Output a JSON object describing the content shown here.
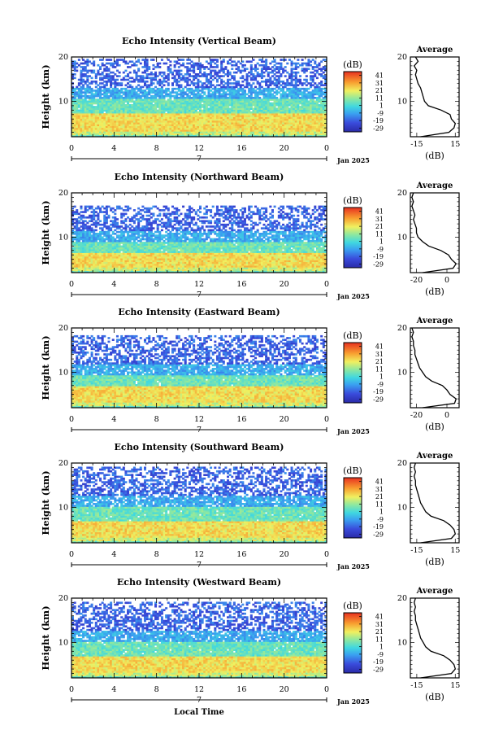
{
  "figure": {
    "date_label": "Jan 2025",
    "day_label": "7",
    "x_axis_title": "Local Time",
    "y_axis_title": "Height (km)",
    "colorbar_unit": "(dB)",
    "colorbar_ticks": [
      "41",
      "31",
      "21",
      "11",
      "1",
      "-9",
      "-19",
      "-29"
    ],
    "avg_title": "Average",
    "avg_xlabel": "(dB)"
  },
  "chart_data": [
    {
      "type": "heatmap",
      "title": "Echo Intensity (Vertical Beam)",
      "xlabel": "Local Time",
      "ylabel": "Height (km)",
      "x_ticks": [
        "0",
        "4",
        "8",
        "12",
        "16",
        "20",
        "0"
      ],
      "xlim": [
        0,
        24
      ],
      "y_ticks": [
        "20",
        "10"
      ],
      "ylim": [
        2,
        20
      ],
      "colorbar": {
        "label": "(dB)",
        "range": [
          -34,
          46
        ],
        "ticks": [
          41,
          31,
          21,
          11,
          1,
          -9,
          -19,
          -29
        ]
      },
      "structure": {
        "strong_below_km": 7.5,
        "moderate_below_km": 10.5,
        "coverage_top_km": 19.5
      },
      "average_profile": {
        "title": "Average",
        "xlabel": "(dB)",
        "x_ticks": [
          "-15",
          "15"
        ],
        "xlim": [
          -20,
          18
        ],
        "ylim": [
          2,
          20
        ],
        "y_ticks": [
          "20",
          "10"
        ],
        "profile": [
          [
            -12,
            2
          ],
          [
            10,
            3
          ],
          [
            14,
            4
          ],
          [
            15,
            5
          ],
          [
            12,
            6
          ],
          [
            11,
            7
          ],
          [
            4,
            8
          ],
          [
            -6,
            9
          ],
          [
            -9,
            10
          ],
          [
            -10,
            11
          ],
          [
            -11,
            12
          ],
          [
            -12,
            13
          ],
          [
            -14,
            14
          ],
          [
            -15,
            15
          ],
          [
            -16,
            16
          ],
          [
            -15,
            17
          ],
          [
            -17,
            18
          ],
          [
            -14,
            19
          ],
          [
            -16,
            20
          ]
        ]
      }
    },
    {
      "type": "heatmap",
      "title": "Echo Intensity (Northward Beam)",
      "xlabel": "Local Time",
      "ylabel": "Height (km)",
      "x_ticks": [
        "0",
        "4",
        "8",
        "12",
        "16",
        "20",
        "0"
      ],
      "xlim": [
        0,
        24
      ],
      "y_ticks": [
        "20",
        "10"
      ],
      "ylim": [
        2,
        20
      ],
      "colorbar": {
        "label": "(dB)",
        "range": [
          -34,
          46
        ],
        "ticks": [
          41,
          31,
          21,
          11,
          1,
          -9,
          -19,
          -29
        ]
      },
      "structure": {
        "strong_below_km": 6.5,
        "moderate_below_km": 9.0,
        "coverage_top_km": 17.0
      },
      "average_profile": {
        "title": "Average",
        "xlabel": "(dB)",
        "x_ticks": [
          "-20",
          "0"
        ],
        "xlim": [
          -24,
          8
        ],
        "ylim": [
          2,
          20
        ],
        "y_ticks": [
          "20",
          "10"
        ],
        "profile": [
          [
            -16,
            2
          ],
          [
            4,
            3
          ],
          [
            6,
            4
          ],
          [
            3,
            5
          ],
          [
            1,
            6
          ],
          [
            -4,
            7
          ],
          [
            -12,
            8
          ],
          [
            -16,
            9
          ],
          [
            -19,
            10
          ],
          [
            -20,
            11
          ],
          [
            -20,
            12
          ],
          [
            -21,
            13
          ],
          [
            -22,
            14
          ],
          [
            -21,
            15
          ],
          [
            -22,
            16
          ],
          [
            -23,
            17
          ],
          [
            -22,
            18
          ],
          [
            -23,
            19
          ],
          [
            -22,
            20
          ]
        ]
      }
    },
    {
      "type": "heatmap",
      "title": "Echo Intensity (Eastward Beam)",
      "xlabel": "Local Time",
      "ylabel": "Height (km)",
      "x_ticks": [
        "0",
        "4",
        "8",
        "12",
        "16",
        "20",
        "0"
      ],
      "xlim": [
        0,
        24
      ],
      "y_ticks": [
        "20",
        "10"
      ],
      "ylim": [
        2,
        20
      ],
      "colorbar": {
        "label": "(dB)",
        "range": [
          -34,
          46
        ],
        "ticks": [
          41,
          31,
          21,
          11,
          1,
          -9,
          -19,
          -29
        ]
      },
      "structure": {
        "strong_below_km": 7.0,
        "moderate_below_km": 9.5,
        "coverage_top_km": 18.5
      },
      "average_profile": {
        "title": "Average",
        "xlabel": "(dB)",
        "x_ticks": [
          "-20",
          "0"
        ],
        "xlim": [
          -24,
          8
        ],
        "ylim": [
          2,
          20
        ],
        "y_ticks": [
          "20",
          "10"
        ],
        "profile": [
          [
            -16,
            2
          ],
          [
            5,
            3
          ],
          [
            6,
            4
          ],
          [
            2,
            5
          ],
          [
            0,
            6
          ],
          [
            -3,
            7
          ],
          [
            -10,
            8
          ],
          [
            -14,
            9
          ],
          [
            -16,
            10
          ],
          [
            -18,
            11
          ],
          [
            -19,
            12
          ],
          [
            -20,
            13
          ],
          [
            -21,
            14
          ],
          [
            -21,
            15
          ],
          [
            -22,
            16
          ],
          [
            -22,
            17
          ],
          [
            -23,
            18
          ],
          [
            -22,
            19
          ],
          [
            -23,
            20
          ]
        ]
      }
    },
    {
      "type": "heatmap",
      "title": "Echo Intensity (Southward Beam)",
      "xlabel": "Local Time",
      "ylabel": "Height (km)",
      "x_ticks": [
        "0",
        "4",
        "8",
        "12",
        "16",
        "20",
        "0"
      ],
      "xlim": [
        0,
        24
      ],
      "y_ticks": [
        "20",
        "10"
      ],
      "ylim": [
        2,
        20
      ],
      "colorbar": {
        "label": "(dB)",
        "range": [
          -34,
          46
        ],
        "ticks": [
          41,
          31,
          21,
          11,
          1,
          -9,
          -19,
          -29
        ]
      },
      "structure": {
        "strong_below_km": 7.0,
        "moderate_below_km": 10.0,
        "coverage_top_km": 19.0
      },
      "average_profile": {
        "title": "Average",
        "xlabel": "(dB)",
        "x_ticks": [
          "-15",
          "15"
        ],
        "xlim": [
          -20,
          18
        ],
        "ylim": [
          2,
          20
        ],
        "y_ticks": [
          "20",
          "10"
        ],
        "profile": [
          [
            -12,
            2
          ],
          [
            12,
            3
          ],
          [
            15,
            4
          ],
          [
            14,
            5
          ],
          [
            11,
            6
          ],
          [
            6,
            7
          ],
          [
            -4,
            8
          ],
          [
            -8,
            9
          ],
          [
            -10,
            10
          ],
          [
            -12,
            11
          ],
          [
            -13,
            12
          ],
          [
            -14,
            13
          ],
          [
            -15,
            14
          ],
          [
            -16,
            15
          ],
          [
            -16,
            16
          ],
          [
            -17,
            17
          ],
          [
            -16,
            18
          ],
          [
            -17,
            19
          ],
          [
            -16,
            20
          ]
        ]
      }
    },
    {
      "type": "heatmap",
      "title": "Echo Intensity (Westward Beam)",
      "xlabel": "Local Time",
      "ylabel": "Height (km)",
      "x_ticks": [
        "0",
        "4",
        "8",
        "12",
        "16",
        "20",
        "0"
      ],
      "xlim": [
        0,
        24
      ],
      "y_ticks": [
        "20",
        "10"
      ],
      "ylim": [
        2,
        20
      ],
      "colorbar": {
        "label": "(dB)",
        "range": [
          -34,
          46
        ],
        "ticks": [
          41,
          31,
          21,
          11,
          1,
          -9,
          -19,
          -29
        ]
      },
      "structure": {
        "strong_below_km": 7.0,
        "moderate_below_km": 10.0,
        "coverage_top_km": 19.0
      },
      "average_profile": {
        "title": "Average",
        "xlabel": "(dB)",
        "x_ticks": [
          "-15",
          "15"
        ],
        "xlim": [
          -20,
          18
        ],
        "ylim": [
          2,
          20
        ],
        "y_ticks": [
          "20",
          "10"
        ],
        "profile": [
          [
            -12,
            2
          ],
          [
            12,
            3
          ],
          [
            15,
            4
          ],
          [
            14,
            5
          ],
          [
            11,
            6
          ],
          [
            6,
            7
          ],
          [
            -4,
            8
          ],
          [
            -8,
            9
          ],
          [
            -10,
            10
          ],
          [
            -12,
            11
          ],
          [
            -13,
            12
          ],
          [
            -14,
            13
          ],
          [
            -15,
            14
          ],
          [
            -16,
            15
          ],
          [
            -16,
            16
          ],
          [
            -17,
            17
          ],
          [
            -16,
            18
          ],
          [
            -17,
            19
          ],
          [
            -16,
            20
          ]
        ]
      }
    }
  ]
}
